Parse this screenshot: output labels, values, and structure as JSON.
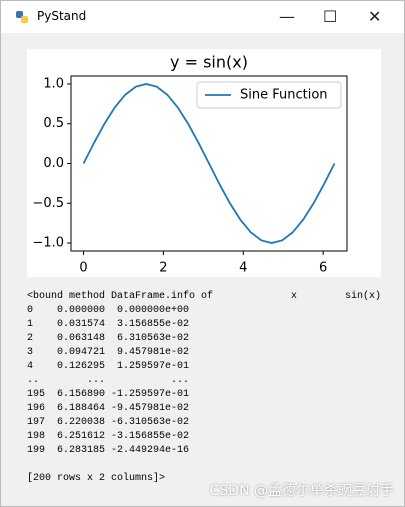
{
  "window": {
    "title": "PyStand"
  },
  "chart_data": {
    "type": "line",
    "title": "y = sin(x)",
    "x": [
      0,
      0.262,
      0.524,
      0.785,
      1.047,
      1.309,
      1.571,
      1.833,
      2.094,
      2.356,
      2.618,
      2.88,
      3.142,
      3.403,
      3.665,
      3.927,
      4.189,
      4.451,
      4.712,
      4.974,
      5.236,
      5.498,
      5.76,
      6.021,
      6.283
    ],
    "series": [
      {
        "name": "Sine Function",
        "color": "#1f77b4",
        "values": [
          0,
          0.259,
          0.5,
          0.707,
          0.866,
          0.966,
          1,
          0.966,
          0.866,
          0.707,
          0.5,
          0.259,
          0,
          -0.259,
          -0.5,
          -0.707,
          -0.866,
          -0.966,
          -1,
          -0.966,
          -0.866,
          -0.707,
          -0.5,
          -0.259,
          0
        ]
      }
    ],
    "xlim": [
      -0.314,
      6.597
    ],
    "xticks": [
      0,
      2,
      4,
      6
    ],
    "ylim": [
      -1.1,
      1.1
    ],
    "yticks": [
      {
        "value": -1,
        "label": "−1.0"
      },
      {
        "value": -0.5,
        "label": "−0.5"
      },
      {
        "value": 0,
        "label": "0.0"
      },
      {
        "value": 0.5,
        "label": "0.5"
      },
      {
        "value": 1,
        "label": "1.0"
      }
    ],
    "legend": "upper right",
    "grid": false
  },
  "output": {
    "lines": [
      "<bound method DataFrame.info of             x        sin(x)",
      "0    0.000000  0.000000e+00",
      "1    0.031574  3.156855e-02",
      "2    0.063148  6.310563e-02",
      "3    0.094721  9.457981e-02",
      "4    0.126295  1.259597e-01",
      "..        ...           ...",
      "195  6.156890 -1.259597e-01",
      "196  6.188464 -9.457981e-02",
      "197  6.220038 -6.310563e-02",
      "198  6.251612 -3.156855e-02",
      "199  6.283185 -2.449294e-16"
    ],
    "footer": "[200 rows x 2 columns]>"
  },
  "watermark": "CSDN @孟德尔单杀豌豆射手"
}
